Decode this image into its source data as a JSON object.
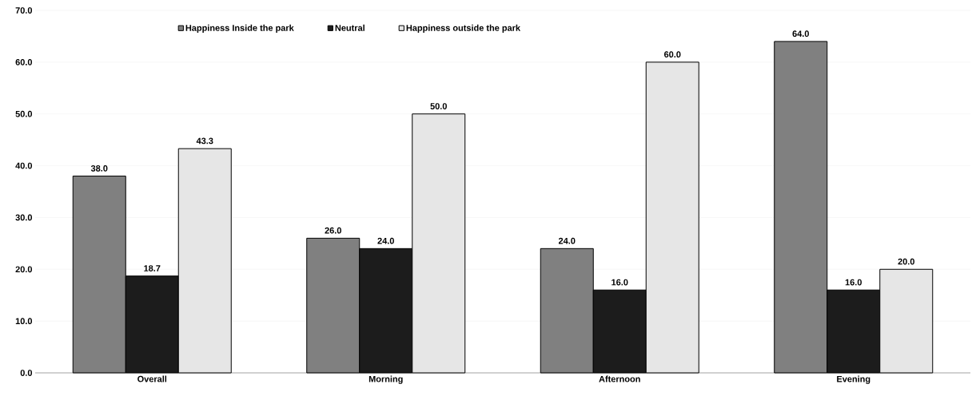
{
  "chart_data": {
    "type": "bar",
    "categories": [
      "Overall",
      "Morning",
      "Afternoon",
      "Evening"
    ],
    "series": [
      {
        "name": "Happiness Inside the park",
        "color": "#808080",
        "values": [
          38.0,
          26.0,
          24.0,
          64.0
        ],
        "value_labels": [
          "38.0",
          "26.0",
          "24.0",
          "64.0"
        ]
      },
      {
        "name": "Neutral",
        "color": "#1c1c1c",
        "values": [
          18.7,
          24.0,
          16.0,
          16.0
        ],
        "value_labels": [
          "18.7",
          "24.0",
          "16.0",
          "16.0"
        ]
      },
      {
        "name": "Happiness outside the park",
        "color": "#e6e6e6",
        "values": [
          43.3,
          50.0,
          60.0,
          20.0
        ],
        "value_labels": [
          "43.3",
          "50.0",
          "60.0",
          "20.0"
        ]
      }
    ],
    "ylim": [
      0,
      70
    ],
    "yticks": [
      {
        "value": 0,
        "label": "0.0"
      },
      {
        "value": 10,
        "label": "10.0"
      },
      {
        "value": 20,
        "label": "20.0"
      },
      {
        "value": 30,
        "label": "30.0"
      },
      {
        "value": 40,
        "label": "40.0"
      },
      {
        "value": 50,
        "label": "50.0"
      },
      {
        "value": 60,
        "label": "60.0"
      },
      {
        "value": 70,
        "label": "70.0"
      }
    ],
    "grid": "y",
    "legend": "top left"
  }
}
